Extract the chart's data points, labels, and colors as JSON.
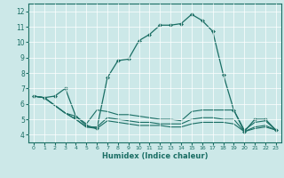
{
  "xlabel": "Humidex (Indice chaleur)",
  "xlim": [
    -0.5,
    23.5
  ],
  "ylim": [
    3.5,
    12.5
  ],
  "xticks": [
    0,
    1,
    2,
    3,
    4,
    5,
    6,
    7,
    8,
    9,
    10,
    11,
    12,
    13,
    14,
    15,
    16,
    17,
    18,
    19,
    20,
    21,
    22,
    23
  ],
  "yticks": [
    4,
    5,
    6,
    7,
    8,
    9,
    10,
    11,
    12
  ],
  "bg_color": "#cce8e8",
  "line_color": "#1a6e64",
  "grid_color": "#ffffff",
  "lines": [
    {
      "x": [
        0,
        1,
        2,
        3,
        4,
        5,
        6,
        7,
        8,
        9,
        10,
        11,
        12,
        13,
        14,
        15,
        16,
        17,
        18,
        19,
        20,
        21,
        22,
        23
      ],
      "y": [
        6.5,
        6.4,
        6.5,
        7.0,
        5.2,
        4.6,
        4.4,
        7.7,
        8.8,
        8.9,
        10.1,
        10.5,
        11.1,
        11.1,
        11.2,
        11.8,
        11.4,
        10.7,
        7.9,
        5.6,
        4.2,
        5.0,
        5.0,
        4.3
      ],
      "marker": true
    },
    {
      "x": [
        0,
        1,
        2,
        3,
        4,
        5,
        6,
        7,
        8,
        9,
        10,
        11,
        12,
        13,
        14,
        15,
        16,
        17,
        18,
        19,
        20,
        21,
        22,
        23
      ],
      "y": [
        6.5,
        6.4,
        5.9,
        5.4,
        5.2,
        4.7,
        5.6,
        5.5,
        5.3,
        5.3,
        5.2,
        5.1,
        5.0,
        5.0,
        4.9,
        5.5,
        5.6,
        5.6,
        5.6,
        5.6,
        4.3,
        4.8,
        4.9,
        4.3
      ],
      "marker": false
    },
    {
      "x": [
        0,
        1,
        2,
        3,
        4,
        5,
        6,
        7,
        8,
        9,
        10,
        11,
        12,
        13,
        14,
        15,
        16,
        17,
        18,
        19,
        20,
        21,
        22,
        23
      ],
      "y": [
        6.5,
        6.4,
        5.9,
        5.4,
        5.0,
        4.5,
        4.5,
        5.1,
        5.0,
        4.9,
        4.8,
        4.8,
        4.7,
        4.7,
        4.7,
        5.0,
        5.1,
        5.1,
        5.0,
        5.0,
        4.2,
        4.5,
        4.6,
        4.3
      ],
      "marker": false
    },
    {
      "x": [
        0,
        1,
        2,
        3,
        4,
        5,
        6,
        7,
        8,
        9,
        10,
        11,
        12,
        13,
        14,
        15,
        16,
        17,
        18,
        19,
        20,
        21,
        22,
        23
      ],
      "y": [
        6.5,
        6.4,
        5.9,
        5.4,
        5.0,
        4.5,
        4.4,
        4.9,
        4.8,
        4.7,
        4.6,
        4.6,
        4.6,
        4.5,
        4.5,
        4.7,
        4.8,
        4.8,
        4.8,
        4.7,
        4.2,
        4.4,
        4.5,
        4.3
      ],
      "marker": false
    }
  ]
}
